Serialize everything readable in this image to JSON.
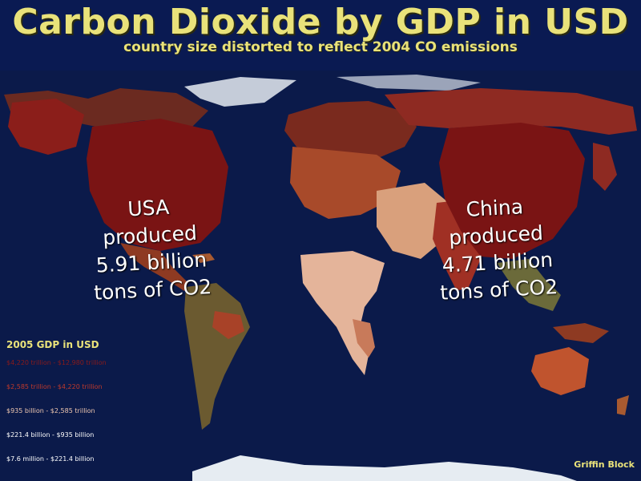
{
  "header": {
    "title": "Carbon Dioxide by GDP in USD",
    "subtitle": "country size distorted to reflect 2004 CO  emissions"
  },
  "callouts": {
    "usa": {
      "lines": [
        "USA",
        "produced",
        "5.91 billion",
        "tons of CO2"
      ]
    },
    "china": {
      "lines": [
        "China",
        "produced",
        "4.71 billion",
        "tons of CO2"
      ]
    }
  },
  "legend": {
    "title": "2005 GDP in USD",
    "items": [
      {
        "label": "$4,220 trillion - $12,980 trillion",
        "color": "#8b1a1a"
      },
      {
        "label": "$2,585 trillion - $4,220 trillion",
        "color": "#c0392b"
      },
      {
        "label": "$935 billion - $2,585 trillion",
        "color": "#f0c8b0"
      },
      {
        "label": "$221.4 billion - $935 billion",
        "color": "#ffffff"
      },
      {
        "label": "$7.6 million - $221.4 billion",
        "color": "#ffffff"
      }
    ]
  },
  "credit": "Griffin Block",
  "colors": {
    "ocean": "#0b1a4a",
    "title": "#e9e27a",
    "dark_red": "#7a1414",
    "red": "#a83228",
    "tan": "#d9a07c",
    "olive": "#6b6a3a",
    "ice": "#e6ecf2"
  }
}
